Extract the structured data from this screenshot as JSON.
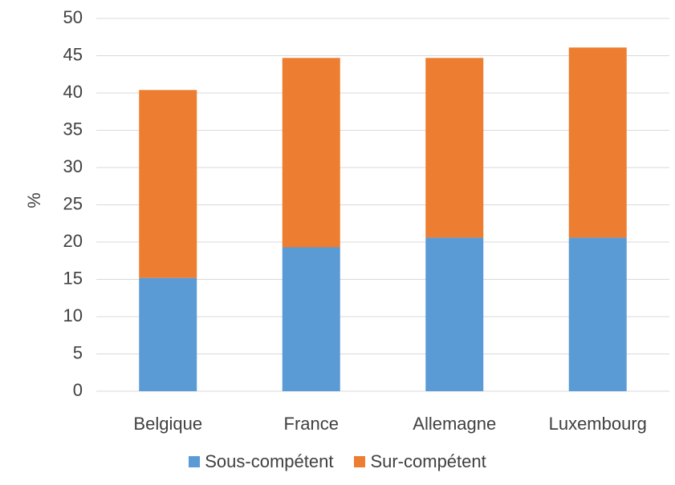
{
  "chart_data": {
    "type": "bar",
    "stacked": true,
    "categories": [
      "Belgique",
      "France",
      "Allemagne",
      "Luxembourg"
    ],
    "series": [
      {
        "name": "Sous-compétent",
        "color": "#5B9BD5",
        "values": [
          15.2,
          19.3,
          20.6,
          20.6
        ]
      },
      {
        "name": "Sur-compétent",
        "color": "#ED7D31",
        "values": [
          25.2,
          25.4,
          24.1,
          25.5
        ]
      }
    ],
    "ylabel": "%",
    "ylim": [
      0,
      50
    ],
    "yticks": [
      0,
      5,
      10,
      15,
      20,
      25,
      30,
      35,
      40,
      45,
      50
    ],
    "grid": true,
    "legend_position": "bottom"
  }
}
